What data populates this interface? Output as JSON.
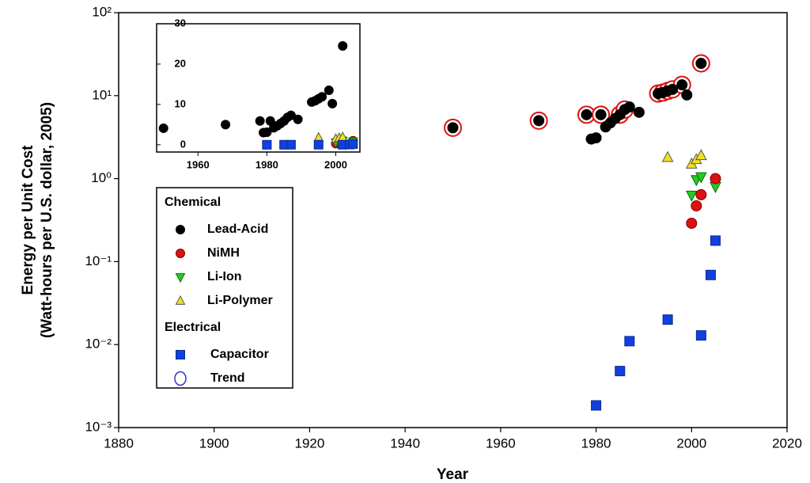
{
  "chart_data": {
    "type": "scatter",
    "x_label": "Year",
    "y_label": [
      "Energy per Unit Cost",
      "(Watt-hours per U.S. dollar, 2005)"
    ],
    "log_y": true,
    "xlim": [
      1880,
      2020
    ],
    "xticks": [
      1880,
      1900,
      1920,
      1940,
      1960,
      1980,
      2000,
      2020
    ],
    "ylim": [
      0.001,
      100
    ],
    "yticks": [
      {
        "value": 0.001,
        "label": "10⁻³"
      },
      {
        "value": 0.01,
        "label": "10⁻²"
      },
      {
        "value": 0.1,
        "label": "10⁻¹"
      },
      {
        "value": 1,
        "label": "10⁰"
      },
      {
        "value": 10,
        "label": "10¹"
      },
      {
        "value": 100,
        "label": "10²"
      }
    ],
    "series": [
      {
        "name": "Lead-Acid",
        "color": "#000000",
        "marker": "circle",
        "x": [
          1950,
          1968,
          1978,
          1979,
          1980,
          1981,
          1982,
          1983,
          1984,
          1985,
          1986,
          1987,
          1989,
          1993,
          1994,
          1995,
          1996,
          1998,
          1999,
          2002
        ],
        "values": [
          4.1,
          5.0,
          5.9,
          3.0,
          3.1,
          5.9,
          4.2,
          4.7,
          5.3,
          5.9,
          6.8,
          7.3,
          6.3,
          10.6,
          10.9,
          11.4,
          11.9,
          13.5,
          10.2,
          24.5
        ]
      },
      {
        "name": "NiMH",
        "color": "#e01010",
        "marker": "circle",
        "x": [
          2000,
          2001,
          2002,
          2005
        ],
        "values": [
          0.29,
          0.47,
          0.64,
          1.0
        ]
      },
      {
        "name": "Li-Ion",
        "color": "#22cc22",
        "marker": "triangle-down",
        "x": [
          2000,
          2001,
          2002,
          2005
        ],
        "values": [
          0.63,
          0.97,
          1.05,
          0.8
        ]
      },
      {
        "name": "Li-Polymer",
        "color": "#f0e020",
        "marker": "triangle-up",
        "x": [
          1995,
          2000,
          2001,
          2002
        ],
        "values": [
          1.8,
          1.5,
          1.7,
          1.9
        ]
      },
      {
        "name": "Capacitor",
        "color": "#1040e0",
        "marker": "square",
        "x": [
          1980,
          1985,
          1987,
          1995,
          2002,
          2004,
          2005
        ],
        "values": [
          0.00185,
          0.0048,
          0.011,
          0.02,
          0.0129,
          0.069,
          0.179
        ]
      },
      {
        "name": "Trend",
        "color": "#e01010",
        "legend_color": "#3333cc",
        "marker": "ring",
        "x": [
          1950,
          1968,
          1978,
          1981,
          1985,
          1986,
          1993,
          1994,
          1995,
          1996,
          1998,
          2002
        ],
        "values": [
          4.1,
          5.0,
          5.9,
          5.9,
          5.9,
          6.8,
          10.6,
          10.9,
          11.4,
          11.9,
          13.5,
          24.5
        ]
      }
    ],
    "legend_groups": [
      {
        "title": "Chemical",
        "series": [
          0,
          1,
          2,
          3
        ]
      },
      {
        "title": "Electrical",
        "series": [
          4,
          5
        ]
      }
    ],
    "inset": {
      "xlim": [
        1948,
        2007
      ],
      "xticks": [
        1960,
        1980,
        2000
      ],
      "ylim": [
        -1.8,
        30
      ],
      "yticks": [
        0,
        10,
        20,
        30
      ]
    }
  }
}
